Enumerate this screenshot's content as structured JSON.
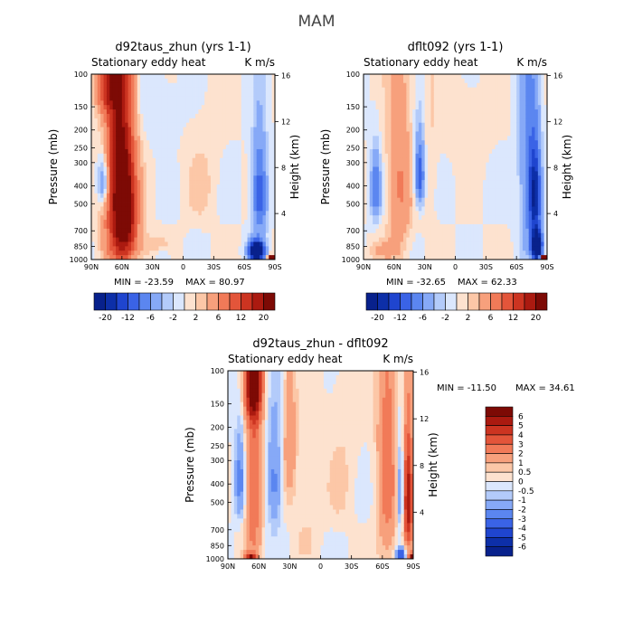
{
  "figure": {
    "title": "MAM"
  },
  "colors": {
    "blue6": "#08218c",
    "blue5": "#0d2fa8",
    "blue4": "#1f45cf",
    "blue3": "#3a63e6",
    "blue2": "#5b86f0",
    "blue1": "#86a9f7",
    "blue0": "#b3cbfa",
    "blue00": "#dbe7fd",
    "warm00": "#fde2cf",
    "warm0": "#fcc7a7",
    "warm1": "#f7a07c",
    "warm2": "#f17a58",
    "warm3": "#e3553a",
    "warm4": "#cc3421",
    "warm5": "#ab1a10",
    "warm6": "#7d0a05"
  },
  "chart_data": [
    {
      "type": "heatmap",
      "id": "left",
      "title": "d92taus_zhun (yrs 1-1)",
      "subtitle_left": "Stationary eddy heat",
      "subtitle_right": "K m/s",
      "xlabel": "",
      "ylabel": "Pressure (mb)",
      "ylabel_right": "Height (km)",
      "x_ticks": [
        "90N",
        "60N",
        "30N",
        "0",
        "30S",
        "60S",
        "90S"
      ],
      "y_ticks": [
        "100",
        "150",
        "200",
        "250",
        "300",
        "400",
        "500",
        "700",
        "850",
        "1000"
      ],
      "y2_ticks": [
        "16",
        "12",
        "8",
        "4"
      ],
      "min_label": "MIN = -23.59",
      "max_label": "MAX = 80.97",
      "min": -23.59,
      "max": 80.97,
      "colorbar_labels": [
        "-20",
        "-12",
        "-6",
        "-2",
        "2",
        "6",
        "12",
        "20"
      ],
      "features": [
        {
          "lat": 62,
          "p": 400,
          "value": 7,
          "latw": 14,
          "pw": 600
        },
        {
          "lat": 75,
          "p": 120,
          "value": 3,
          "latw": 12,
          "pw": 40
        },
        {
          "lat": 55,
          "p": 600,
          "value": 3,
          "latw": 10,
          "pw": 300
        },
        {
          "lat": 78,
          "p": 380,
          "value": -3,
          "latw": 6,
          "pw": 120
        },
        {
          "lat": 40,
          "p": 850,
          "value": 1,
          "latw": 20,
          "pw": 150
        },
        {
          "lat": -18,
          "p": 380,
          "value": 0.5,
          "latw": 18,
          "pw": 250
        },
        {
          "lat": 40,
          "p": 150,
          "value": -0.5,
          "latw": 40,
          "pw": 80
        },
        {
          "lat": -75,
          "p": 450,
          "value": -4,
          "latw": 7,
          "pw": 250
        },
        {
          "lat": -72,
          "p": 900,
          "value": -12,
          "latw": 7,
          "pw": 100
        },
        {
          "lat": -87,
          "p": 1000,
          "value": 20,
          "latw": 3,
          "pw": 40
        },
        {
          "lat": 20,
          "p": 950,
          "value": -1,
          "latw": 8,
          "pw": 60
        }
      ]
    },
    {
      "type": "heatmap",
      "id": "right",
      "title": "dflt092 (yrs 1-1)",
      "subtitle_left": "Stationary eddy heat",
      "subtitle_right": "K m/s",
      "xlabel": "",
      "ylabel": "Pressure (mb)",
      "ylabel_right": "Height (km)",
      "x_ticks": [
        "90N",
        "60N",
        "30N",
        "0",
        "30S",
        "60S",
        "90S"
      ],
      "y_ticks": [
        "100",
        "150",
        "200",
        "250",
        "300",
        "400",
        "500",
        "700",
        "850",
        "1000"
      ],
      "y2_ticks": [
        "16",
        "12",
        "8",
        "4"
      ],
      "min_label": "MIN = -32.65",
      "max_label": "MAX = 62.33",
      "min": -32.65,
      "max": 62.33,
      "colorbar_labels": [
        "-20",
        "-12",
        "-6",
        "-2",
        "2",
        "6",
        "12",
        "20"
      ],
      "features": [
        {
          "lat": 55,
          "p": 400,
          "value": 2,
          "latw": 12,
          "pw": 500
        },
        {
          "lat": 35,
          "p": 350,
          "value": -4,
          "latw": 5,
          "pw": 150
        },
        {
          "lat": 78,
          "p": 420,
          "value": -3,
          "latw": 5,
          "pw": 160
        },
        {
          "lat": 25,
          "p": 300,
          "value": 0.5,
          "latw": 8,
          "pw": 400
        },
        {
          "lat": -70,
          "p": 300,
          "value": -2,
          "latw": 8,
          "pw": 600
        },
        {
          "lat": -78,
          "p": 450,
          "value": -6,
          "latw": 6,
          "pw": 250
        },
        {
          "lat": -80,
          "p": 850,
          "value": -10,
          "latw": 5,
          "pw": 150
        },
        {
          "lat": -87,
          "p": 1000,
          "value": 20,
          "latw": 3,
          "pw": 40
        },
        {
          "lat": 70,
          "p": 900,
          "value": 1,
          "latw": 15,
          "pw": 100
        },
        {
          "lat": -10,
          "p": 200,
          "value": 0.5,
          "latw": 20,
          "pw": 100
        }
      ]
    },
    {
      "type": "heatmap",
      "id": "diff",
      "title": "d92taus_zhun - dflt092",
      "subtitle_left": "Stationary eddy heat",
      "subtitle_right": "K m/s",
      "xlabel": "",
      "ylabel": "Pressure (mb)",
      "ylabel_right": "Height (km)",
      "x_ticks": [
        "90N",
        "60N",
        "30N",
        "0",
        "30S",
        "60S",
        "90S"
      ],
      "y_ticks": [
        "100",
        "150",
        "200",
        "250",
        "300",
        "400",
        "500",
        "700",
        "850",
        "1000"
      ],
      "y2_ticks": [
        "16",
        "12",
        "8",
        "4"
      ],
      "min_label": "MIN = -11.50",
      "max_label": "MAX =  34.61",
      "min": -11.5,
      "max": 34.61,
      "colorbar_labels": [
        "6",
        "5",
        "4",
        "3",
        "2",
        "1",
        "0.5",
        "0",
        "-0.5",
        "-1",
        "-2",
        "-3",
        "-4",
        "-5",
        "-6"
      ],
      "features": [
        {
          "lat": 65,
          "p": 115,
          "value": 6.5,
          "latw": 8,
          "pw": 60
        },
        {
          "lat": 65,
          "p": 400,
          "value": 3,
          "latw": 8,
          "pw": 600
        },
        {
          "lat": 78,
          "p": 380,
          "value": -2.5,
          "latw": 5,
          "pw": 200
        },
        {
          "lat": 45,
          "p": 400,
          "value": -2.5,
          "latw": 7,
          "pw": 250
        },
        {
          "lat": 68,
          "p": 1000,
          "value": 6,
          "latw": 5,
          "pw": 60
        },
        {
          "lat": 30,
          "p": 250,
          "value": 2,
          "latw": 6,
          "pw": 200
        },
        {
          "lat": 15,
          "p": 600,
          "value": 0.5,
          "latw": 12,
          "pw": 400
        },
        {
          "lat": -20,
          "p": 350,
          "value": 0.5,
          "latw": 15,
          "pw": 300
        },
        {
          "lat": -65,
          "p": 300,
          "value": 2.5,
          "latw": 10,
          "pw": 700
        },
        {
          "lat": -78,
          "p": 450,
          "value": -3,
          "latw": 4,
          "pw": 250
        },
        {
          "lat": -85,
          "p": 500,
          "value": 6,
          "latw": 5,
          "pw": 350
        },
        {
          "lat": -78,
          "p": 950,
          "value": -5,
          "latw": 4,
          "pw": 80
        },
        {
          "lat": -89,
          "p": 1000,
          "value": 7,
          "latw": 3,
          "pw": 60
        }
      ]
    }
  ]
}
